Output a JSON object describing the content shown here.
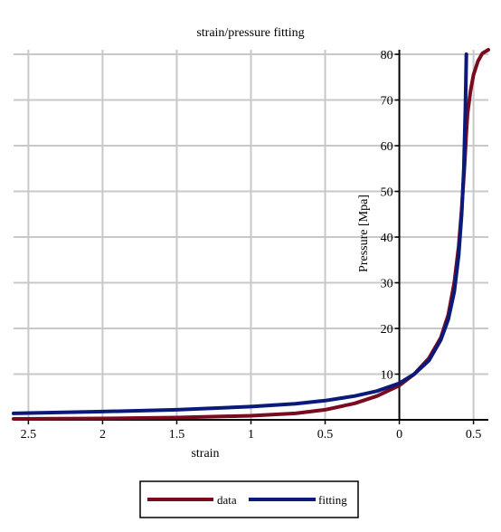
{
  "chart_data": {
    "type": "line",
    "title": "strain/pressure fitting",
    "xlabel": "strain",
    "ylabel": "Pressure [Mpa]",
    "xlim": [
      -2.6,
      0.6
    ],
    "ylim": [
      0,
      81
    ],
    "grid": true,
    "legend_placement": "bottom-center",
    "x_ticks": [
      -2.5,
      -2,
      -1.5,
      -1,
      -0.5,
      0,
      0.5
    ],
    "x_tick_labels": [
      "2.5",
      "2",
      "1.5",
      "1",
      "0.5",
      "0",
      "0.5"
    ],
    "y_ticks": [
      10,
      20,
      30,
      40,
      50,
      60,
      70,
      80
    ],
    "y_tick_labels": [
      "10",
      "20",
      "30",
      "40",
      "50",
      "60",
      "70",
      "80"
    ],
    "series": [
      {
        "name": "data",
        "color": "#7a0a1e",
        "x": [
          -2.6,
          -2.0,
          -1.5,
          -1.0,
          -0.7,
          -0.5,
          -0.3,
          -0.15,
          0.0,
          0.1,
          0.2,
          0.28,
          0.33,
          0.37,
          0.4,
          0.42,
          0.44,
          0.45,
          0.46,
          0.48,
          0.5,
          0.53,
          0.56,
          0.6
        ],
        "values": [
          0.2,
          0.3,
          0.5,
          0.9,
          1.4,
          2.2,
          3.6,
          5.2,
          7.5,
          10.0,
          13.5,
          18.0,
          23.0,
          30.0,
          38.0,
          46.0,
          56.0,
          62.0,
          67.0,
          72.0,
          75.5,
          78.5,
          80.2,
          81.0
        ]
      },
      {
        "name": "fitting",
        "color": "#0a1a7a",
        "x": [
          -2.6,
          -2.0,
          -1.5,
          -1.0,
          -0.7,
          -0.5,
          -0.3,
          -0.15,
          0.0,
          0.1,
          0.2,
          0.28,
          0.33,
          0.37,
          0.4,
          0.42,
          0.435,
          0.445,
          0.452
        ],
        "values": [
          1.4,
          1.8,
          2.2,
          2.9,
          3.5,
          4.2,
          5.2,
          6.3,
          8.0,
          10.0,
          13.0,
          17.5,
          22.0,
          28.0,
          36.0,
          45.0,
          55.0,
          68.0,
          80.0
        ]
      }
    ]
  }
}
